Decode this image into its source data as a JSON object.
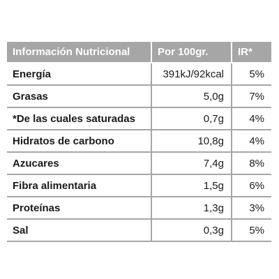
{
  "table": {
    "headers": [
      "Información Nutricional",
      "Por 100gr.",
      "IR*"
    ],
    "rows": [
      {
        "name": "Energía",
        "per100": "391kJ/92kcal",
        "ir": "5%"
      },
      {
        "name": "Grasas",
        "per100": "5,0g",
        "ir": "7%"
      },
      {
        "name": "*De las cuales saturadas",
        "per100": "0,7g",
        "ir": "4%"
      },
      {
        "name": "Hidratos de carbono",
        "per100": "10,8g",
        "ir": "4%"
      },
      {
        "name": "Azucares",
        "per100": "7,4g",
        "ir": "8%"
      },
      {
        "name": "Fibra alimentaria",
        "per100": "1,5g",
        "ir": "6%"
      },
      {
        "name": "Proteínas",
        "per100": "1,3g",
        "ir": "3%"
      },
      {
        "name": "Sal",
        "per100": "0,3g",
        "ir": "5%"
      }
    ]
  },
  "colors": {
    "header_bg": "#a6a6a6",
    "header_text": "#ffffff",
    "grid_line": "#a6a6a6"
  }
}
